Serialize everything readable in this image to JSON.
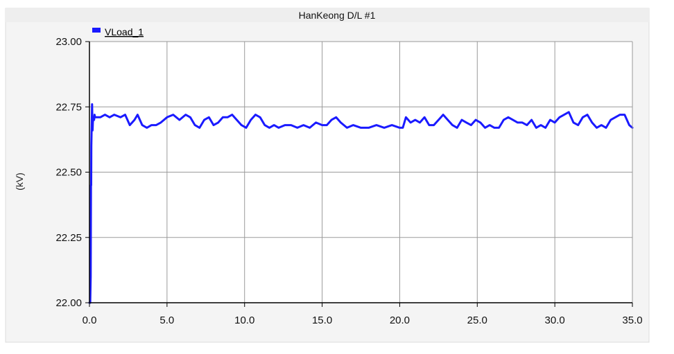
{
  "chart_data": {
    "type": "line",
    "title": "HanKeong D/L #1",
    "ylabel": "(kV)",
    "xlabel": "",
    "xlim": [
      0,
      35
    ],
    "ylim": [
      22.0,
      23.0
    ],
    "x_ticks": [
      "0.0",
      "5.0",
      "10.0",
      "15.0",
      "20.0",
      "25.0",
      "30.0",
      "35.0"
    ],
    "y_ticks": [
      "22.00",
      "22.25",
      "22.50",
      "22.75",
      "23.00"
    ],
    "grid": true,
    "legend_position": "top-left",
    "series": [
      {
        "name": "VLoad_1",
        "color": "#1a1aff",
        "x": [
          0.0,
          0.05,
          0.08,
          0.1,
          0.11,
          0.12,
          0.15,
          0.17,
          0.2,
          0.22,
          0.25,
          0.3,
          0.33,
          0.36,
          0.4,
          0.5,
          0.7,
          1.0,
          1.3,
          1.6,
          2.0,
          2.3,
          2.6,
          2.9,
          3.1,
          3.4,
          3.7,
          4.0,
          4.3,
          4.6,
          5.0,
          5.4,
          5.8,
          6.2,
          6.5,
          6.8,
          7.1,
          7.4,
          7.7,
          8.0,
          8.3,
          8.6,
          8.9,
          9.2,
          9.5,
          9.8,
          10.1,
          10.4,
          10.7,
          11.0,
          11.3,
          11.6,
          11.9,
          12.2,
          12.6,
          13.0,
          13.4,
          13.8,
          14.2,
          14.6,
          15.0,
          15.3,
          15.6,
          15.9,
          16.2,
          16.6,
          17.0,
          17.5,
          18.0,
          18.5,
          19.0,
          19.5,
          20.0,
          20.2,
          20.4,
          20.7,
          21.0,
          21.3,
          21.6,
          21.9,
          22.2,
          22.5,
          22.8,
          23.1,
          23.4,
          23.7,
          24.0,
          24.3,
          24.6,
          24.9,
          25.2,
          25.5,
          25.8,
          26.1,
          26.4,
          26.7,
          27.0,
          27.3,
          27.6,
          27.9,
          28.2,
          28.5,
          28.8,
          29.1,
          29.4,
          29.7,
          30.0,
          30.3,
          30.6,
          30.9,
          31.2,
          31.5,
          31.8,
          32.1,
          32.4,
          32.7,
          33.0,
          33.3,
          33.6,
          33.9,
          34.2,
          34.5,
          34.8,
          35.0
        ],
        "y": [
          22.0,
          22.0,
          22.1,
          22.45,
          22.45,
          22.6,
          22.7,
          22.76,
          22.66,
          22.69,
          22.71,
          22.7,
          22.72,
          22.71,
          22.71,
          22.71,
          22.71,
          22.72,
          22.71,
          22.72,
          22.71,
          22.72,
          22.68,
          22.7,
          22.72,
          22.68,
          22.67,
          22.68,
          22.68,
          22.69,
          22.71,
          22.72,
          22.7,
          22.72,
          22.71,
          22.68,
          22.67,
          22.7,
          22.71,
          22.68,
          22.69,
          22.71,
          22.71,
          22.72,
          22.7,
          22.68,
          22.67,
          22.7,
          22.72,
          22.71,
          22.68,
          22.67,
          22.68,
          22.67,
          22.68,
          22.68,
          22.67,
          22.68,
          22.67,
          22.69,
          22.68,
          22.68,
          22.7,
          22.71,
          22.69,
          22.67,
          22.68,
          22.67,
          22.67,
          22.68,
          22.67,
          22.68,
          22.67,
          22.67,
          22.71,
          22.69,
          22.7,
          22.69,
          22.71,
          22.68,
          22.68,
          22.7,
          22.72,
          22.7,
          22.68,
          22.67,
          22.7,
          22.69,
          22.68,
          22.7,
          22.69,
          22.67,
          22.68,
          22.67,
          22.67,
          22.7,
          22.71,
          22.7,
          22.69,
          22.69,
          22.68,
          22.7,
          22.67,
          22.68,
          22.67,
          22.7,
          22.69,
          22.71,
          22.72,
          22.73,
          22.69,
          22.68,
          22.71,
          22.72,
          22.69,
          22.67,
          22.68,
          22.67,
          22.7,
          22.71,
          22.72,
          22.72,
          22.68,
          22.67
        ]
      }
    ]
  }
}
